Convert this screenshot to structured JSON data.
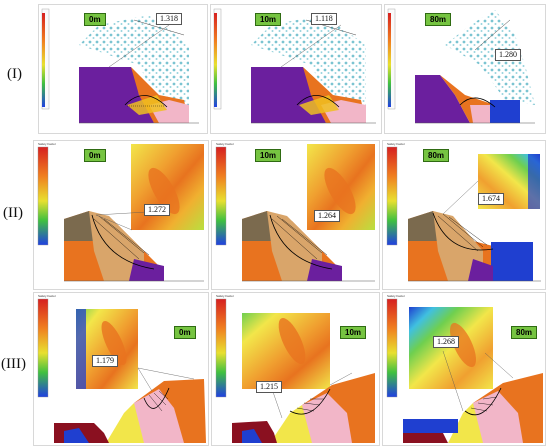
{
  "rows": [
    {
      "label": "(I)",
      "panels": [
        {
          "distance": "0m",
          "fos": "1.318"
        },
        {
          "distance": "10m",
          "fos": "1.118"
        },
        {
          "distance": "80m",
          "fos": "1.280"
        }
      ]
    },
    {
      "label": "(II)",
      "panels": [
        {
          "distance": "0m",
          "fos": "1.272"
        },
        {
          "distance": "10m",
          "fos": "1.264"
        },
        {
          "distance": "80m",
          "fos": "1.674"
        }
      ]
    },
    {
      "label": "(III)",
      "panels": [
        {
          "distance": "0m",
          "fos": "1.179"
        },
        {
          "distance": "10m",
          "fos": "1.215"
        },
        {
          "distance": "80m",
          "fos": "1.268"
        }
      ]
    }
  ],
  "legend": {
    "title": "Safety Factor"
  },
  "colors": {
    "tag_green": "#76c441",
    "orange": "#e8731f",
    "purple": "#6b1f9e",
    "pink": "#f2b6c8",
    "yellow": "#f2e64a",
    "green": "#6fcf4f",
    "blue": "#1f3fd0",
    "cyan_particles": "#4fb8c8"
  }
}
